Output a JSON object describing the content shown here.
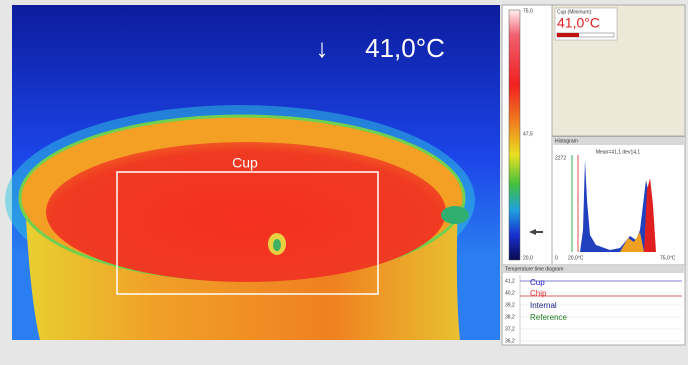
{
  "image": {
    "arrow": "↓",
    "reading": "41,0°C",
    "roi_label": "Cup"
  },
  "scale": {
    "ticks": [
      "75,0",
      "47,5",
      "20,0"
    ]
  },
  "cup_panel": {
    "title": "Cup (Minimum):",
    "value": "41,0°C"
  },
  "histogram": {
    "title": "Histogram",
    "stats": "Mean=41,1 dev14,1",
    "y_max": "2272",
    "y_min": "0",
    "x_min": "20,0°C",
    "x_max": "75,0°C"
  },
  "time_diagram": {
    "title": "Temperature time diagram",
    "yticks": [
      "41,2",
      "40,2",
      "39,2",
      "38,2",
      "37,2",
      "36,2"
    ],
    "legend": [
      "Cup",
      "Chip",
      "Internal",
      "Reference"
    ]
  }
}
